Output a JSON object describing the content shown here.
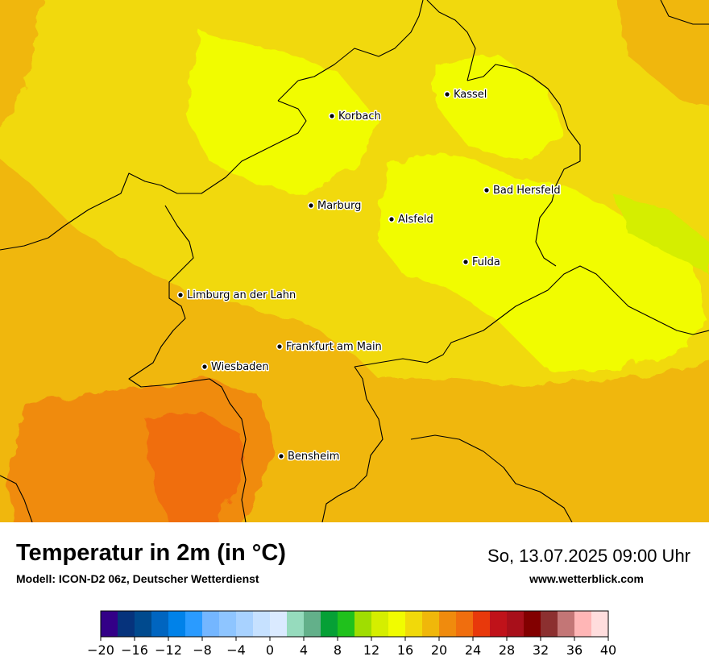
{
  "title": "Temperatur in 2m (in °C)",
  "model_line": "Modell: ICON-D2 06z, Deutscher Wetterdienst",
  "datetime": "So, 13.07.2025 09:00 Uhr",
  "website": "www.wetterblick.com",
  "cities": [
    {
      "name": "Kassel"
    },
    {
      "name": "Korbach"
    },
    {
      "name": "Bad Hersfeld"
    },
    {
      "name": "Marburg"
    },
    {
      "name": "Alsfeld"
    },
    {
      "name": "Fulda"
    },
    {
      "name": "Limburg an der Lahn"
    },
    {
      "name": "Frankfurt am Main"
    },
    {
      "name": "Wiesbaden"
    },
    {
      "name": "Bensheim"
    }
  ],
  "legend": {
    "min": -20,
    "max": 40,
    "step": 2,
    "tick_labels": [
      "−20",
      "−16",
      "−12",
      "−8",
      "−4",
      "0",
      "4",
      "8",
      "12",
      "16",
      "20",
      "24",
      "28",
      "32",
      "36",
      "40"
    ],
    "colors": [
      "#330087",
      "#06337c",
      "#004a8e",
      "#0065c0",
      "#0082e9",
      "#2a9bff",
      "#74b6ff",
      "#8ec5ff",
      "#a8d2ff",
      "#c6e1ff",
      "#daeaff",
      "#96dbbd",
      "#63b08a",
      "#06a036",
      "#20c11c",
      "#a0dd01",
      "#d5ee00",
      "#f1fc00",
      "#f1d90a",
      "#f0b70a",
      "#f08b0d",
      "#f06e0e",
      "#e8390b",
      "#c0121a",
      "#a80f1a",
      "#820000",
      "#8c3030",
      "#c37676",
      "#ffb6b6",
      "#ffdddd"
    ]
  },
  "map_colors": {
    "c14_16": "#f1fc00",
    "c16_18": "#f1d90a",
    "c18_20": "#f0b70a",
    "c20_22": "#f08b0d",
    "c22_24": "#f06e0e",
    "c12_14": "#d5ee00",
    "border": "#000000"
  }
}
